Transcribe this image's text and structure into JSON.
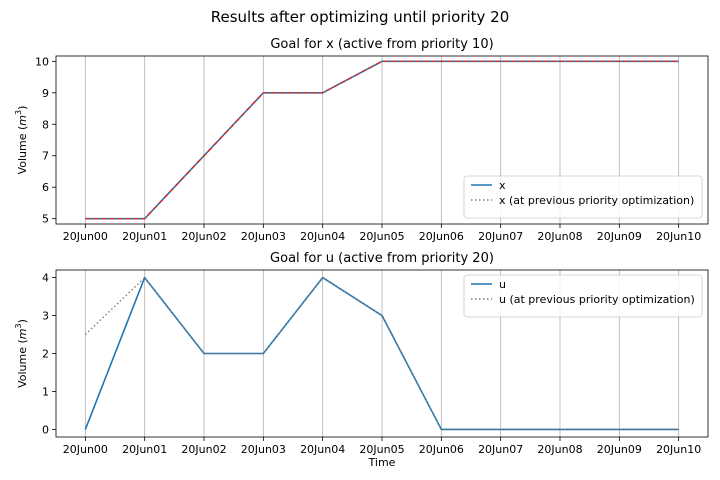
{
  "figure": {
    "suptitle": "Results after optimizing until priority 20"
  },
  "chart_data": [
    {
      "type": "line",
      "title": "Goal for x (active from priority 10)",
      "xlabel": "",
      "ylabel": "Volume (m3)",
      "ylabel_parts": {
        "text": "Volume (",
        "var": "m",
        "sup": "3",
        "close": ")"
      },
      "categories": [
        "20Jun00",
        "20Jun01",
        "20Jun02",
        "20Jun03",
        "20Jun04",
        "20Jun05",
        "20Jun06",
        "20Jun07",
        "20Jun08",
        "20Jun09",
        "20Jun10"
      ],
      "ylim": [
        4.83,
        10.17
      ],
      "yticks": [
        5,
        6,
        7,
        8,
        9,
        10
      ],
      "grid": "x",
      "legend": "lower-right",
      "series": [
        {
          "name": "x",
          "style": "solid",
          "color": "#1f77b4",
          "values": [
            5,
            5,
            7,
            9,
            9,
            10,
            10,
            10,
            10,
            10,
            10
          ]
        },
        {
          "name": "x (at previous priority optimization)",
          "style": "dotted",
          "color": "#7f7f7f",
          "values": [
            5,
            5,
            7,
            9,
            9,
            10,
            10,
            10,
            10,
            10,
            10
          ]
        },
        {
          "name": "",
          "style": "dashed",
          "color": "#d62728",
          "values": [
            5,
            5,
            7,
            9,
            9,
            10,
            10,
            10,
            10,
            10,
            10
          ]
        }
      ]
    },
    {
      "type": "line",
      "title": "Goal for u (active from priority 20)",
      "xlabel": "Time",
      "ylabel": "Volume (m3)",
      "ylabel_parts": {
        "text": "Volume (",
        "var": "m",
        "sup": "3",
        "close": ")"
      },
      "categories": [
        "20Jun00",
        "20Jun01",
        "20Jun02",
        "20Jun03",
        "20Jun04",
        "20Jun05",
        "20Jun06",
        "20Jun07",
        "20Jun08",
        "20Jun09",
        "20Jun10"
      ],
      "ylim": [
        -0.2,
        4.2
      ],
      "yticks": [
        0,
        1,
        2,
        3,
        4
      ],
      "grid": "x",
      "legend": "upper-right",
      "series": [
        {
          "name": "u",
          "style": "solid",
          "color": "#1f77b4",
          "values": [
            0,
            4,
            2,
            2,
            4,
            3,
            0,
            0,
            0,
            0,
            0
          ]
        },
        {
          "name": "u (at previous priority optimization)",
          "style": "dotted",
          "color": "#7f7f7f",
          "values": [
            2.5,
            4,
            2,
            2,
            4,
            3,
            0,
            0,
            0,
            0,
            0
          ]
        }
      ]
    }
  ]
}
